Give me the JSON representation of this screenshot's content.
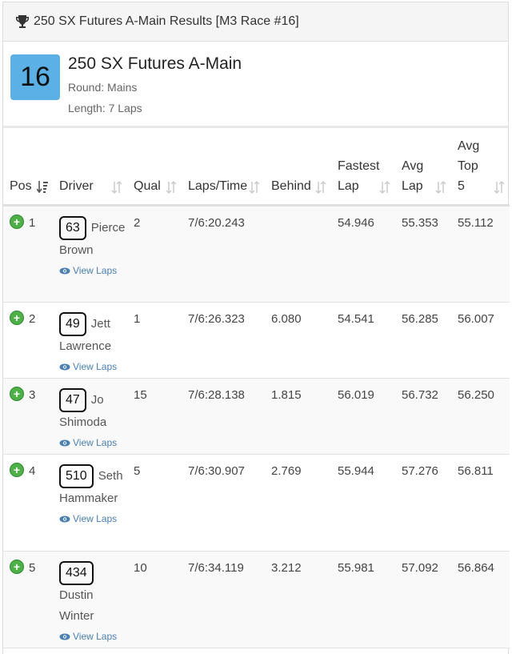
{
  "header": {
    "title": "250 SX Futures A-Main Results [M3 Race #16]"
  },
  "race": {
    "number": "16",
    "title": "250 SX Futures A-Main",
    "round": "Round: Mains",
    "length": "Length: 7 Laps"
  },
  "columns": {
    "pos": "Pos",
    "driver": "Driver",
    "qual": "Qual",
    "laps_time": "Laps/Time",
    "behind": "Behind",
    "fastest_lap": "Fastest Lap",
    "avg_lap": "Avg Lap",
    "avg_top5": "Avg Top 5"
  },
  "view_laps_label": "View Laps",
  "rows": [
    {
      "pos": "1",
      "bib": "63",
      "name": "Pierce Brown",
      "qual": "2",
      "laps_time": "7/6:20.243",
      "behind": "",
      "fastest": "54.946",
      "avg": "55.353",
      "avg5": "55.112"
    },
    {
      "pos": "2",
      "bib": "49",
      "name": "Jett Lawrence",
      "qual": "1",
      "laps_time": "7/6:26.323",
      "behind": "6.080",
      "fastest": "54.541",
      "avg": "56.285",
      "avg5": "56.007"
    },
    {
      "pos": "3",
      "bib": "47",
      "name": "Jo Shimoda",
      "qual": "15",
      "laps_time": "7/6:28.138",
      "behind": "1.815",
      "fastest": "56.019",
      "avg": "56.732",
      "avg5": "56.250"
    },
    {
      "pos": "4",
      "bib": "510",
      "name": "Seth Hammaker",
      "qual": "5",
      "laps_time": "7/6:30.907",
      "behind": "2.769",
      "fastest": "55.944",
      "avg": "57.276",
      "avg5": "56.811"
    },
    {
      "pos": "5",
      "bib": "434",
      "name": "Dustin Winter",
      "qual": "10",
      "laps_time": "7/6:34.119",
      "behind": "3.212",
      "fastest": "55.981",
      "avg": "57.092",
      "avg5": "56.864"
    }
  ],
  "colors": {
    "accent": "#5bb0e6",
    "expand": "#4fb04a",
    "link": "#4a7fb0"
  }
}
